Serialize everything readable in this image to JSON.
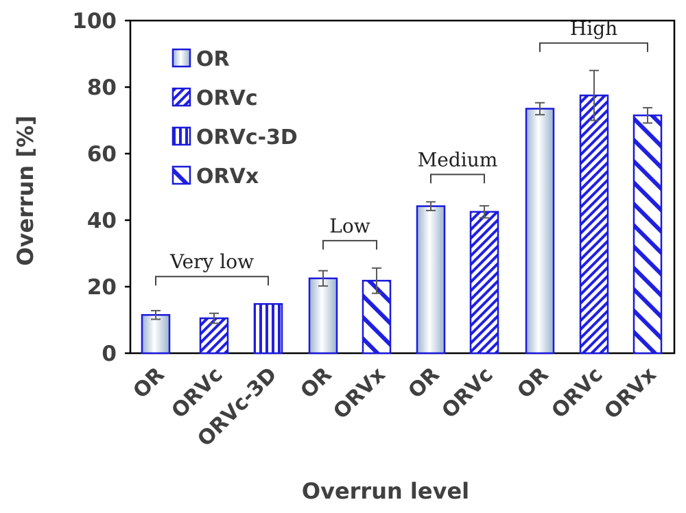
{
  "chart_data": {
    "type": "bar",
    "xlabel": "Overrun level",
    "ylabel": "Overrun [%]",
    "ylim": [
      0,
      100
    ],
    "yticks": [
      0,
      20,
      40,
      60,
      80,
      100
    ],
    "grid": false,
    "legend_position": "top-left",
    "legend": [
      {
        "name": "OR",
        "pattern": "gradient"
      },
      {
        "name": "ORVc",
        "pattern": "diagonal-fine"
      },
      {
        "name": "ORVc-3D",
        "pattern": "vertical"
      },
      {
        "name": "ORVx",
        "pattern": "diagonal-wide"
      }
    ],
    "bars": [
      {
        "label": "OR",
        "value": 11.5,
        "error": 1.3,
        "pattern": "gradient"
      },
      {
        "label": "ORVc",
        "value": 10.5,
        "error": 1.5,
        "pattern": "diagonal-fine"
      },
      {
        "label": "ORVc-3D",
        "value": 14.8,
        "error": 0,
        "pattern": "vertical"
      },
      {
        "label": "OR",
        "value": 22.5,
        "error": 2.3,
        "pattern": "gradient"
      },
      {
        "label": "ORVx",
        "value": 21.8,
        "error": 3.8,
        "pattern": "diagonal-wide"
      },
      {
        "label": "OR",
        "value": 44.2,
        "error": 1.3,
        "pattern": "gradient"
      },
      {
        "label": "ORVc",
        "value": 42.5,
        "error": 1.8,
        "pattern": "diagonal-fine"
      },
      {
        "label": "OR",
        "value": 73.5,
        "error": 1.8,
        "pattern": "gradient"
      },
      {
        "label": "ORVc",
        "value": 77.5,
        "error": 7.5,
        "pattern": "diagonal-fine"
      },
      {
        "label": "ORVx",
        "value": 71.5,
        "error": 2.3,
        "pattern": "diagonal-wide"
      }
    ],
    "groups": [
      {
        "name": "Very low",
        "bars": [
          0,
          1,
          2
        ]
      },
      {
        "name": "Low",
        "bars": [
          3,
          4
        ]
      },
      {
        "name": "Medium",
        "bars": [
          5,
          6
        ]
      },
      {
        "name": "High",
        "bars": [
          7,
          8,
          9
        ]
      }
    ],
    "colors": {
      "outline": "#1a1adb",
      "pattern": "#2020e0",
      "gradient_light": "#ffffff",
      "gradient_dark": "#9bb3cf",
      "error_bar": "#5a5a5a",
      "axis": "#000000",
      "text": "#404040"
    }
  }
}
